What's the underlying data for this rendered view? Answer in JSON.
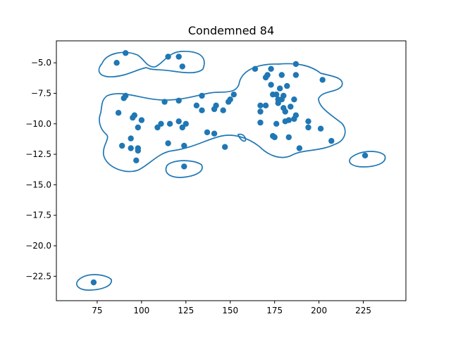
{
  "colors": {
    "series": "#1f77b4",
    "axes": "#000000",
    "background": "#ffffff"
  },
  "chart_data": {
    "type": "scatter",
    "title": "Condemned 84",
    "xlabel": "",
    "ylabel": "",
    "xlim": [
      52,
      249
    ],
    "ylim": [
      -24.5,
      -3.2
    ],
    "xticks": [
      75,
      100,
      125,
      150,
      175,
      200,
      225
    ],
    "yticks": [
      -5.0,
      -7.5,
      -10.0,
      -12.5,
      -15.0,
      -17.5,
      -20.0,
      -22.5
    ],
    "xtick_labels": [
      "75",
      "100",
      "125",
      "150",
      "175",
      "200",
      "225"
    ],
    "ytick_labels": [
      "−5.0",
      "−7.5",
      "−10.0",
      "−12.5",
      "−15.0",
      "−17.5",
      "−20.0",
      "−22.5"
    ],
    "grid": false,
    "points": [
      [
        86,
        -5.0
      ],
      [
        91,
        -4.2
      ],
      [
        115,
        -4.5
      ],
      [
        121,
        -4.5
      ],
      [
        123,
        -5.3
      ],
      [
        90,
        -7.9
      ],
      [
        91,
        -7.7
      ],
      [
        87,
        -9.1
      ],
      [
        95,
        -9.5
      ],
      [
        96,
        -9.3
      ],
      [
        100,
        -9.7
      ],
      [
        98,
        -10.3
      ],
      [
        89,
        -11.8
      ],
      [
        94,
        -11.2
      ],
      [
        94,
        -12.0
      ],
      [
        98,
        -12.0
      ],
      [
        98,
        -12.2
      ],
      [
        97,
        -13.0
      ],
      [
        109,
        -10.3
      ],
      [
        111,
        -10.0
      ],
      [
        113,
        -8.2
      ],
      [
        116,
        -10.0
      ],
      [
        115,
        -11.6
      ],
      [
        121,
        -8.1
      ],
      [
        121,
        -9.8
      ],
      [
        123,
        -10.3
      ],
      [
        125,
        -10.0
      ],
      [
        124,
        -11.8
      ],
      [
        124,
        -13.5
      ],
      [
        131,
        -8.5
      ],
      [
        134,
        -7.7
      ],
      [
        134,
        -8.9
      ],
      [
        137,
        -10.7
      ],
      [
        141,
        -10.8
      ],
      [
        141,
        -8.8
      ],
      [
        142,
        -8.5
      ],
      [
        146,
        -8.9
      ],
      [
        147,
        -11.9
      ],
      [
        149,
        -8.2
      ],
      [
        150,
        -8.0
      ],
      [
        152,
        -7.6
      ],
      [
        164,
        -5.5
      ],
      [
        170,
        -6.2
      ],
      [
        171,
        -6.0
      ],
      [
        173,
        -5.5
      ],
      [
        173,
        -6.8
      ],
      [
        174,
        -7.6
      ],
      [
        167,
        -8.5
      ],
      [
        167,
        -9.0
      ],
      [
        167,
        -9.9
      ],
      [
        170,
        -8.5
      ],
      [
        174,
        -11.0
      ],
      [
        175,
        -11.1
      ],
      [
        176,
        -10.0
      ],
      [
        176,
        -7.6
      ],
      [
        177,
        -8.0
      ],
      [
        177,
        -8.3
      ],
      [
        178,
        -7.1
      ],
      [
        179,
        -6.0
      ],
      [
        179,
        -8.0
      ],
      [
        180,
        -7.7
      ],
      [
        180,
        -8.7
      ],
      [
        181,
        -9.0
      ],
      [
        181,
        -9.8
      ],
      [
        182,
        -6.9
      ],
      [
        183,
        -9.7
      ],
      [
        183,
        -11.1
      ],
      [
        184,
        -8.6
      ],
      [
        186,
        -8.0
      ],
      [
        186,
        -9.6
      ],
      [
        187,
        -6.0
      ],
      [
        187,
        -5.1
      ],
      [
        187,
        -9.3
      ],
      [
        189,
        -12.0
      ],
      [
        194,
        -9.8
      ],
      [
        194,
        -10.3
      ],
      [
        201,
        -10.4
      ],
      [
        202,
        -6.4
      ],
      [
        207,
        -11.4
      ],
      [
        226,
        -12.6
      ],
      [
        73,
        -23.0
      ]
    ]
  }
}
